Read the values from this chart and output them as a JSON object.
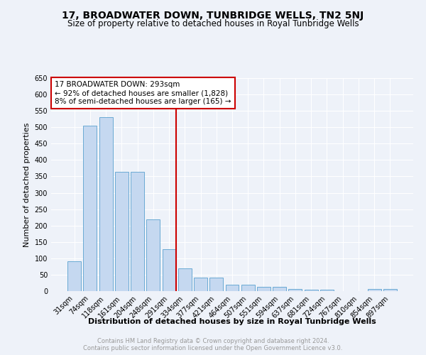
{
  "title": "17, BROADWATER DOWN, TUNBRIDGE WELLS, TN2 5NJ",
  "subtitle": "Size of property relative to detached houses in Royal Tunbridge Wells",
  "xlabel": "Distribution of detached houses by size in Royal Tunbridge Wells",
  "ylabel": "Number of detached properties",
  "categories": [
    "31sqm",
    "74sqm",
    "118sqm",
    "161sqm",
    "204sqm",
    "248sqm",
    "291sqm",
    "334sqm",
    "377sqm",
    "421sqm",
    "464sqm",
    "507sqm",
    "551sqm",
    "594sqm",
    "637sqm",
    "681sqm",
    "724sqm",
    "767sqm",
    "810sqm",
    "854sqm",
    "897sqm"
  ],
  "values": [
    91,
    505,
    530,
    365,
    365,
    218,
    127,
    70,
    42,
    42,
    20,
    20,
    14,
    14,
    7,
    4,
    4,
    1,
    1,
    7,
    7
  ],
  "bar_color": "#c5d8f0",
  "bar_edge_color": "#6aaad4",
  "vline_x_index": 6,
  "vline_color": "#cc0000",
  "annotation_line1": "17 BROADWATER DOWN: 293sqm",
  "annotation_line2": "← 92% of detached houses are smaller (1,828)",
  "annotation_line3": "8% of semi-detached houses are larger (165) →",
  "annotation_box_color": "#ffffff",
  "annotation_box_edge_color": "#cc0000",
  "ylim": [
    0,
    650
  ],
  "yticks": [
    0,
    50,
    100,
    150,
    200,
    250,
    300,
    350,
    400,
    450,
    500,
    550,
    600,
    650
  ],
  "footer_line1": "Contains HM Land Registry data © Crown copyright and database right 2024.",
  "footer_line2": "Contains public sector information licensed under the Open Government Licence v3.0.",
  "bg_color": "#eef2f9",
  "grid_color": "#ffffff",
  "title_fontsize": 10,
  "subtitle_fontsize": 8.5,
  "axis_label_fontsize": 8,
  "tick_fontsize": 7,
  "annotation_fontsize": 7.5,
  "footer_fontsize": 6
}
